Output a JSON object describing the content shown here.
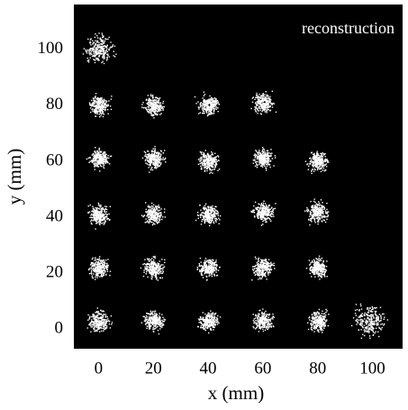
{
  "chart_data": {
    "type": "scatter",
    "annotation": "reconstruction",
    "xlabel": "x (mm)",
    "ylabel": "y (mm)",
    "x": [
      0,
      20,
      40,
      60,
      80,
      99,
      0,
      20,
      40,
      60,
      80,
      0,
      20,
      40,
      60,
      80,
      0,
      20,
      40,
      60,
      80,
      0,
      20,
      40,
      60,
      0
    ],
    "values": [
      3,
      3,
      3,
      3,
      3,
      3,
      22,
      22,
      22,
      22,
      22,
      41,
      41,
      41,
      42,
      42,
      61,
      61,
      60,
      61,
      60,
      80,
      80,
      80,
      81,
      100
    ],
    "color": "#ffffff",
    "background": "#000000",
    "xlim": [
      -9,
      111
    ],
    "ylim": [
      -7,
      116
    ],
    "xticks": [
      0,
      20,
      40,
      60,
      80,
      100
    ],
    "yticks": [
      0,
      20,
      40,
      60,
      80,
      100
    ]
  }
}
